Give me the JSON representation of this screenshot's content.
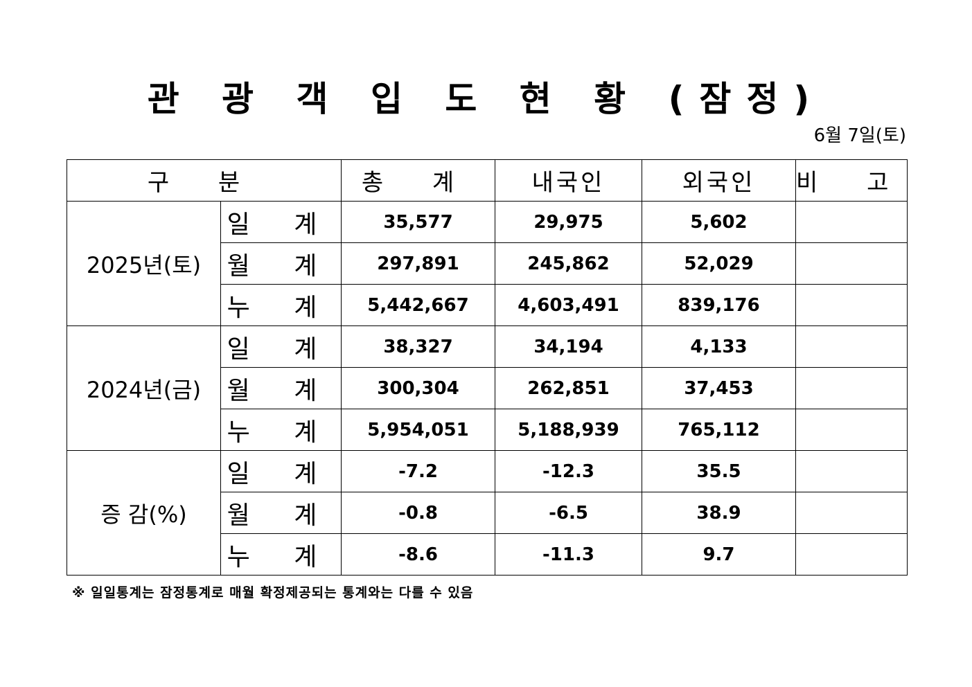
{
  "title": "관 광 객 입 도 현 황 (잠정)",
  "date": "6월  7일(토)",
  "table": {
    "headers": {
      "category": "구   분",
      "total": "총   계",
      "domestic": "내국인",
      "foreign": "외국인",
      "remarks": "비   고"
    },
    "groups": [
      {
        "label": "2025년(토)",
        "rows": [
          {
            "label": "일 계",
            "total": "35,577",
            "domestic": "29,975",
            "foreign": "5,602",
            "remarks": ""
          },
          {
            "label": "월 계",
            "total": "297,891",
            "domestic": "245,862",
            "foreign": "52,029",
            "remarks": ""
          },
          {
            "label": "누 계",
            "total": "5,442,667",
            "domestic": "4,603,491",
            "foreign": "839,176",
            "remarks": ""
          }
        ]
      },
      {
        "label": "2024년(금)",
        "rows": [
          {
            "label": "일 계",
            "total": "38,327",
            "domestic": "34,194",
            "foreign": "4,133",
            "remarks": ""
          },
          {
            "label": "월 계",
            "total": "300,304",
            "domestic": "262,851",
            "foreign": "37,453",
            "remarks": ""
          },
          {
            "label": "누 계",
            "total": "5,954,051",
            "domestic": "5,188,939",
            "foreign": "765,112",
            "remarks": ""
          }
        ]
      },
      {
        "label": "증  감(%)",
        "rows": [
          {
            "label": "일 계",
            "total": "-7.2",
            "domestic": "-12.3",
            "foreign": "35.5",
            "remarks": ""
          },
          {
            "label": "월 계",
            "total": "-0.8",
            "domestic": "-6.5",
            "foreign": "38.9",
            "remarks": ""
          },
          {
            "label": "누 계",
            "total": "-8.6",
            "domestic": "-11.3",
            "foreign": "9.7",
            "remarks": ""
          }
        ]
      }
    ]
  },
  "note": "※ 일일통계는 잠정통계로 매월 확정제공되는 통계와는 다를 수 있음"
}
